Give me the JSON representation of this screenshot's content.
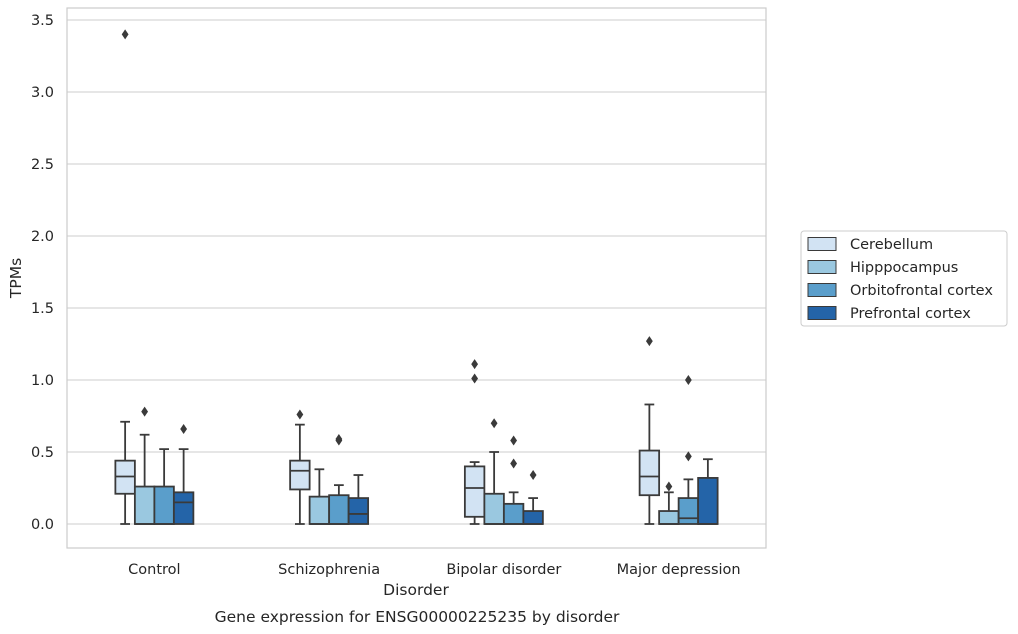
{
  "chart_data": {
    "type": "box",
    "caption": "Gene expression for ENSG00000225235 by disorder",
    "xlabel": "Disorder",
    "ylabel": "TPMs",
    "ylim": [
      -0.17,
      3.58
    ],
    "yticks": [
      0.0,
      0.5,
      1.0,
      1.5,
      2.0,
      2.5,
      3.0,
      3.5
    ],
    "ytick_labels": [
      "0.0",
      "0.5",
      "1.0",
      "1.5",
      "2.0",
      "2.5",
      "3.0",
      "3.5"
    ],
    "grid": "horizontal",
    "legend_position": "right",
    "categories": [
      "Control",
      "Schizophrenia",
      "Bipolar disorder",
      "Major depression"
    ],
    "series": [
      {
        "name": "Cerebellum",
        "color": "#d2e3f3",
        "boxes": [
          {
            "whisker_low": 0.0,
            "q1": 0.21,
            "median": 0.33,
            "q3": 0.44,
            "whisker_high": 0.71,
            "outliers": [
              3.4
            ]
          },
          {
            "whisker_low": 0.0,
            "q1": 0.24,
            "median": 0.37,
            "q3": 0.44,
            "whisker_high": 0.69,
            "outliers": [
              0.76
            ]
          },
          {
            "whisker_low": 0.0,
            "q1": 0.05,
            "median": 0.25,
            "q3": 0.4,
            "whisker_high": 0.43,
            "outliers": [
              1.01,
              1.11
            ]
          },
          {
            "whisker_low": 0.0,
            "q1": 0.2,
            "median": 0.33,
            "q3": 0.51,
            "whisker_high": 0.83,
            "outliers": [
              1.27
            ]
          }
        ]
      },
      {
        "name": "Hipppocampus",
        "color": "#9ac8e0",
        "boxes": [
          {
            "whisker_low": 0.0,
            "q1": 0.0,
            "median": 0.0,
            "q3": 0.26,
            "whisker_high": 0.62,
            "outliers": [
              0.78
            ]
          },
          {
            "whisker_low": 0.0,
            "q1": 0.0,
            "median": 0.0,
            "q3": 0.19,
            "whisker_high": 0.38,
            "outliers": []
          },
          {
            "whisker_low": 0.0,
            "q1": 0.0,
            "median": 0.0,
            "q3": 0.21,
            "whisker_high": 0.5,
            "outliers": [
              0.7
            ]
          },
          {
            "whisker_low": 0.0,
            "q1": 0.0,
            "median": 0.0,
            "q3": 0.09,
            "whisker_high": 0.22,
            "outliers": [
              0.26
            ]
          }
        ]
      },
      {
        "name": "Orbitofrontal cortex",
        "color": "#5a9ecb",
        "boxes": [
          {
            "whisker_low": 0.0,
            "q1": 0.0,
            "median": 0.0,
            "q3": 0.26,
            "whisker_high": 0.52,
            "outliers": []
          },
          {
            "whisker_low": 0.0,
            "q1": 0.0,
            "median": 0.0,
            "q3": 0.2,
            "whisker_high": 0.27,
            "outliers": [
              0.58,
              0.59
            ]
          },
          {
            "whisker_low": 0.0,
            "q1": 0.0,
            "median": 0.0,
            "q3": 0.14,
            "whisker_high": 0.22,
            "outliers": [
              0.42,
              0.58
            ]
          },
          {
            "whisker_low": 0.0,
            "q1": 0.0,
            "median": 0.04,
            "q3": 0.18,
            "whisker_high": 0.31,
            "outliers": [
              0.47,
              1.0
            ]
          }
        ]
      },
      {
        "name": "Prefrontal cortex",
        "color": "#2464a8",
        "boxes": [
          {
            "whisker_low": 0.0,
            "q1": 0.0,
            "median": 0.15,
            "q3": 0.22,
            "whisker_high": 0.52,
            "outliers": [
              0.66
            ]
          },
          {
            "whisker_low": 0.0,
            "q1": 0.0,
            "median": 0.07,
            "q3": 0.18,
            "whisker_high": 0.34,
            "outliers": []
          },
          {
            "whisker_low": 0.0,
            "q1": 0.0,
            "median": 0.0,
            "q3": 0.09,
            "whisker_high": 0.18,
            "outliers": [
              0.34
            ]
          },
          {
            "whisker_low": 0.0,
            "q1": 0.0,
            "median": 0.0,
            "q3": 0.32,
            "whisker_high": 0.45,
            "outliers": []
          }
        ]
      }
    ]
  }
}
